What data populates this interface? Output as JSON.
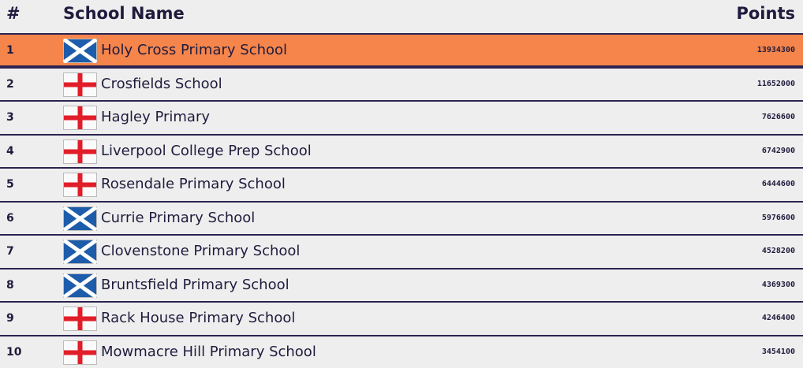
{
  "header": {
    "rank": "#",
    "name": "School Name",
    "points": "Points"
  },
  "table": {
    "rows": [
      {
        "rank": 1,
        "flag": "scotland",
        "name": "Holy Cross Primary School",
        "points": 13934300
      },
      {
        "rank": 2,
        "flag": "england",
        "name": "Crosfields School",
        "points": 11652000
      },
      {
        "rank": 3,
        "flag": "england",
        "name": "Hagley Primary",
        "points": 7626600
      },
      {
        "rank": 4,
        "flag": "england",
        "name": "Liverpool College Prep School",
        "points": 6742900
      },
      {
        "rank": 5,
        "flag": "england",
        "name": "Rosendale Primary School",
        "points": 6444600
      },
      {
        "rank": 6,
        "flag": "scotland",
        "name": "Currie Primary School",
        "points": 5976600
      },
      {
        "rank": 7,
        "flag": "scotland",
        "name": "Clovenstone Primary School",
        "points": 4528200
      },
      {
        "rank": 8,
        "flag": "scotland",
        "name": "Bruntsfield Primary School",
        "points": 4369300
      },
      {
        "rank": 9,
        "flag": "england",
        "name": "Rack House Primary School",
        "points": 4246400
      },
      {
        "rank": 10,
        "flag": "england",
        "name": "Mowmacre Hill Primary School",
        "points": 3454100
      }
    ]
  }
}
